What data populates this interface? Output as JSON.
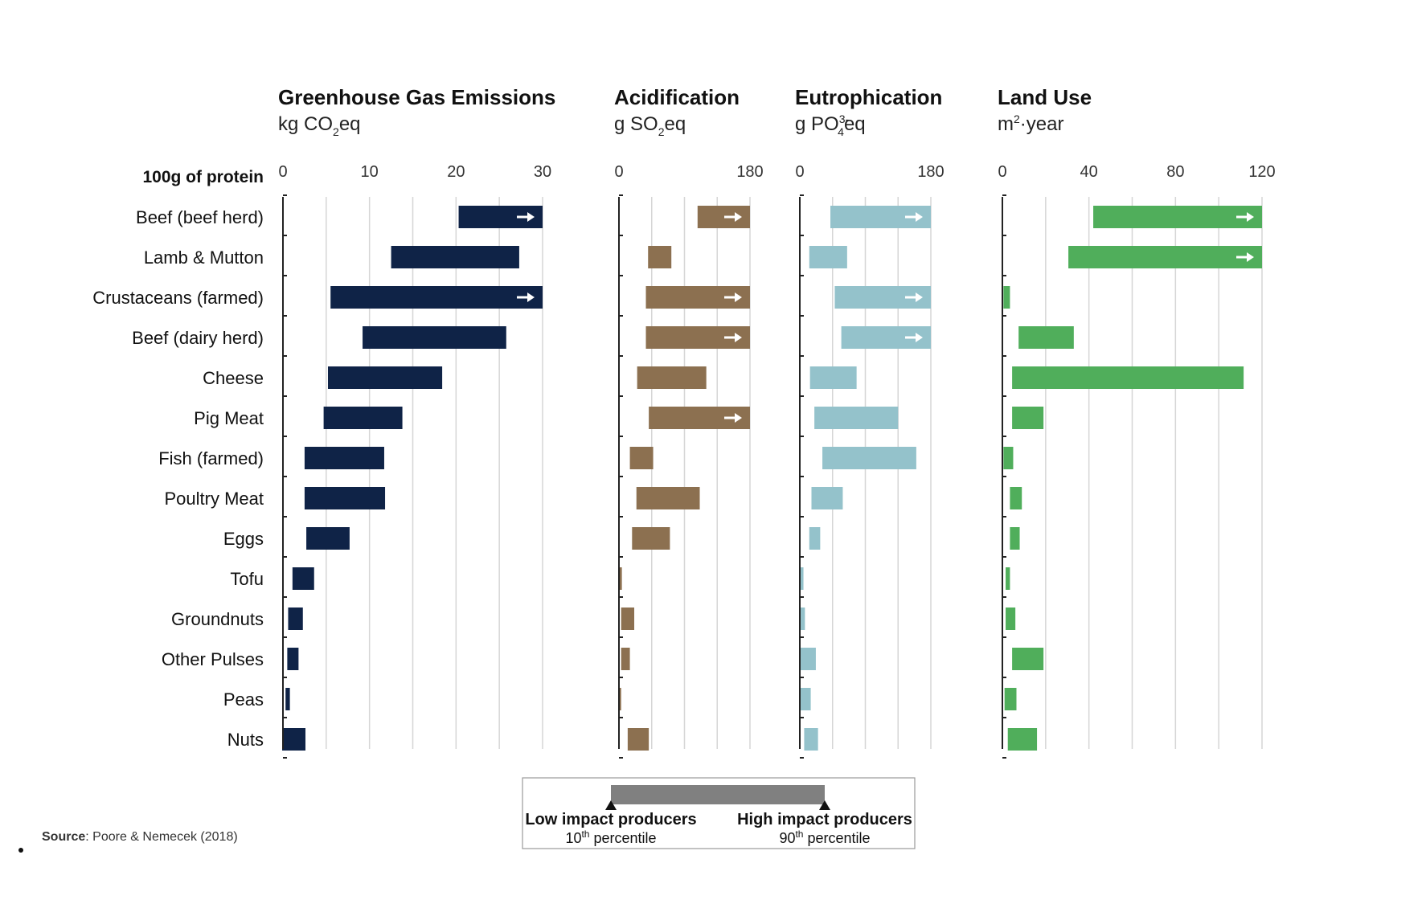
{
  "chart_data": {
    "type": "bar",
    "row_header": "100g of protein",
    "categories": [
      "Beef (beef herd)",
      "Lamb & Mutton",
      "Crustaceans (farmed)",
      "Beef (dairy herd)",
      "Cheese",
      "Pig Meat",
      "Fish (farmed)",
      "Poultry Meat",
      "Eggs",
      "Tofu",
      "Groundnuts",
      "Other Pulses",
      "Peas",
      "Nuts"
    ],
    "panels": [
      {
        "key": "ghg",
        "title": "Greenhouse Gas Emissions",
        "unit_pre": "kg CO",
        "unit_sub": "2",
        "unit_sup": "",
        "unit_post": "eq",
        "xlim": [
          0,
          30
        ],
        "ticks": [
          0,
          10,
          20,
          30
        ],
        "color": "#0f2347",
        "ranges": [
          [
            20.3,
            30
          ],
          [
            12.5,
            27.3
          ],
          [
            5.5,
            30
          ],
          [
            9.2,
            25.8
          ],
          [
            5.2,
            18.4
          ],
          [
            4.7,
            13.8
          ],
          [
            2.5,
            11.7
          ],
          [
            2.5,
            11.8
          ],
          [
            2.7,
            7.7
          ],
          [
            1.1,
            3.6
          ],
          [
            0.6,
            2.3
          ],
          [
            0.5,
            1.8
          ],
          [
            0.3,
            0.8
          ],
          [
            -0.1,
            2.6
          ]
        ],
        "capped": [
          true,
          false,
          true,
          false,
          false,
          false,
          false,
          false,
          false,
          false,
          false,
          false,
          false,
          false
        ]
      },
      {
        "key": "acid",
        "title": "Acidification",
        "unit_pre": "g SO",
        "unit_sub": "2",
        "unit_sup": "",
        "unit_post": "eq",
        "xlim": [
          0,
          180
        ],
        "ticks": [
          0,
          180
        ],
        "color": "#8c7050",
        "ranges": [
          [
            108,
            180
          ],
          [
            40,
            72
          ],
          [
            37,
            180
          ],
          [
            37,
            180
          ],
          [
            25,
            120
          ],
          [
            41,
            180
          ],
          [
            15,
            47
          ],
          [
            24,
            111
          ],
          [
            18,
            70
          ],
          [
            1,
            4
          ],
          [
            3,
            21
          ],
          [
            3,
            15
          ],
          [
            0,
            3
          ],
          [
            12,
            41
          ]
        ],
        "capped": [
          true,
          false,
          true,
          true,
          false,
          true,
          false,
          false,
          false,
          false,
          false,
          false,
          false,
          false
        ]
      },
      {
        "key": "eutro",
        "title": "Eutrophication",
        "unit_pre": "g PO",
        "unit_sub": "4",
        "unit_sup": "3-",
        "unit_post": "eq",
        "xlim": [
          0,
          180
        ],
        "ticks": [
          0,
          180
        ],
        "color": "#94c2cb",
        "ranges": [
          [
            42,
            180
          ],
          [
            13,
            65
          ],
          [
            48,
            180
          ],
          [
            57,
            180
          ],
          [
            14,
            78
          ],
          [
            20,
            135
          ],
          [
            31,
            160
          ],
          [
            16,
            59
          ],
          [
            13,
            28
          ],
          [
            0,
            5
          ],
          [
            0,
            7
          ],
          [
            0,
            22
          ],
          [
            0,
            15
          ],
          [
            6,
            25
          ]
        ],
        "capped": [
          true,
          false,
          true,
          true,
          false,
          false,
          false,
          false,
          false,
          false,
          false,
          false,
          false,
          false
        ]
      },
      {
        "key": "land",
        "title": "Land Use",
        "unit_pre": "m",
        "unit_sub": "",
        "unit_sup": "2",
        "unit_post": "·year",
        "xlim": [
          0,
          120
        ],
        "ticks": [
          0,
          40,
          80,
          120
        ],
        "color": "#50ae5b",
        "ranges": [
          [
            42,
            120
          ],
          [
            30.5,
            120
          ],
          [
            0.5,
            3.5
          ],
          [
            7.5,
            33
          ],
          [
            4.5,
            111.5
          ],
          [
            4.5,
            19
          ],
          [
            0.5,
            5
          ],
          [
            3.5,
            9
          ],
          [
            3.5,
            8
          ],
          [
            1.5,
            3.5
          ],
          [
            1.5,
            6
          ],
          [
            4.5,
            19
          ],
          [
            1,
            6.5
          ],
          [
            2.5,
            16
          ]
        ],
        "capped": [
          true,
          true,
          false,
          false,
          false,
          false,
          false,
          false,
          false,
          false,
          false,
          false,
          false,
          false
        ]
      }
    ],
    "legend": {
      "low_label": "Low impact producers",
      "low_pct": "10",
      "low_pct_sup": "th",
      "low_pct_post": " percentile",
      "high_label": "High impact producers",
      "high_pct": "90",
      "high_pct_sup": "th",
      "high_pct_post": " percentile",
      "bar_color": "#808080"
    },
    "source_label": "Source",
    "source_text": ": Poore & Nemecek (2018)"
  }
}
